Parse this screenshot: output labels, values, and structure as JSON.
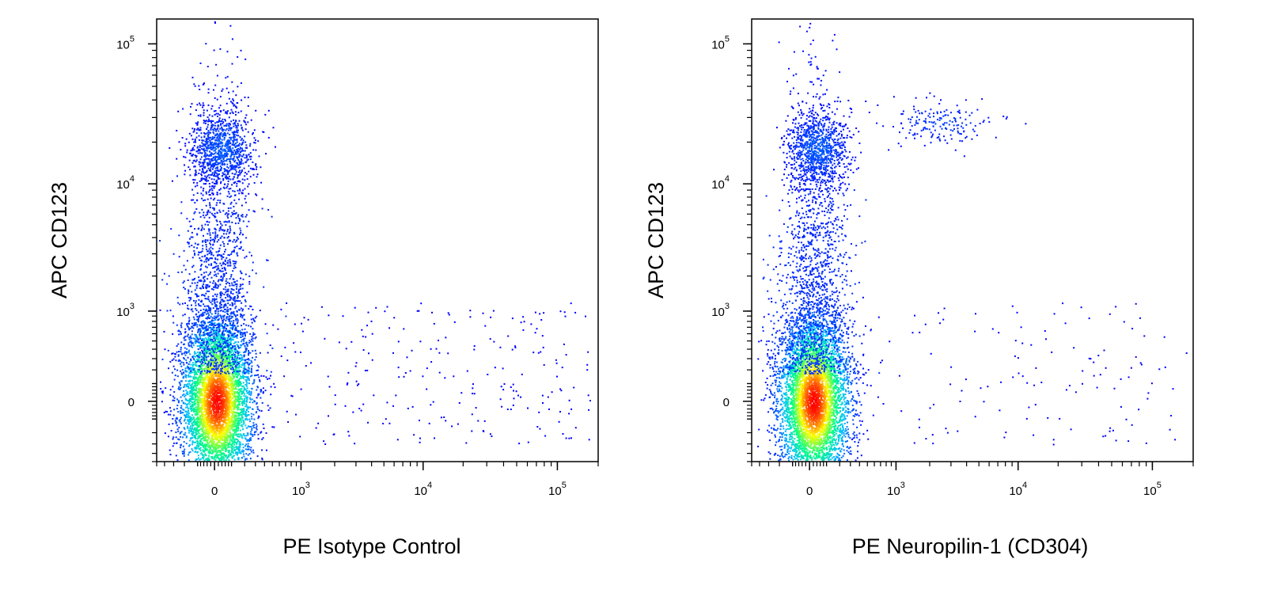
{
  "chart_data": [
    {
      "type": "scatter",
      "subtype": "flow-cytometry density dot plot (biexponential axes)",
      "xlabel": "PE Isotype Control",
      "ylabel": "APC  CD123",
      "x_ticks": [
        {
          "value": 0,
          "base": "0",
          "exp": ""
        },
        {
          "value": 1000,
          "base": "10",
          "exp": "3"
        },
        {
          "value": 10000,
          "base": "10",
          "exp": "4"
        },
        {
          "value": 100000,
          "base": "10",
          "exp": "5"
        }
      ],
      "y_ticks": [
        {
          "value": 0,
          "base": "0",
          "exp": ""
        },
        {
          "value": 1000,
          "base": "10",
          "exp": "3"
        },
        {
          "value": 10000,
          "base": "10",
          "exp": "4"
        },
        {
          "value": 100000,
          "base": "10",
          "exp": "5"
        }
      ],
      "xlim": [
        -500,
        200000
      ],
      "ylim": [
        -500,
        150000
      ],
      "color_scale": [
        "#0000ff",
        "#00c0ff",
        "#00ff80",
        "#ffff00",
        "#ff0000"
      ],
      "populations": [
        {
          "name": "main cluster",
          "x_center": 0,
          "y_center": 0,
          "density": "high"
        },
        {
          "name": "CD123 high",
          "x_center": 0,
          "y_center": 18000,
          "density": "low"
        },
        {
          "name": "scattered events",
          "x_range": [
            300,
            150000
          ],
          "y_range": [
            -200,
            1000
          ],
          "density": "sparse"
        }
      ]
    },
    {
      "type": "scatter",
      "subtype": "flow-cytometry density dot plot (biexponential axes)",
      "xlabel": "PE Neuropilin-1 (CD304)",
      "ylabel": "APC  CD123",
      "x_ticks": [
        {
          "value": 0,
          "base": "0",
          "exp": ""
        },
        {
          "value": 1000,
          "base": "10",
          "exp": "3"
        },
        {
          "value": 10000,
          "base": "10",
          "exp": "4"
        },
        {
          "value": 100000,
          "base": "10",
          "exp": "5"
        }
      ],
      "y_ticks": [
        {
          "value": 0,
          "base": "0",
          "exp": ""
        },
        {
          "value": 1000,
          "base": "10",
          "exp": "3"
        },
        {
          "value": 10000,
          "base": "10",
          "exp": "4"
        },
        {
          "value": 100000,
          "base": "10",
          "exp": "5"
        }
      ],
      "xlim": [
        -500,
        200000
      ],
      "ylim": [
        -500,
        150000
      ],
      "color_scale": [
        "#0000ff",
        "#00c0ff",
        "#00ff80",
        "#ffff00",
        "#ff0000"
      ],
      "populations": [
        {
          "name": "main cluster",
          "x_center": 0,
          "y_center": 0,
          "density": "high"
        },
        {
          "name": "CD123 high",
          "x_center": 0,
          "y_center": 18000,
          "density": "low"
        },
        {
          "name": "CD304+ CD123 high",
          "x_center": 2500,
          "y_center": 28000,
          "density": "low"
        },
        {
          "name": "scattered events",
          "x_range": [
            300,
            150000
          ],
          "y_range": [
            -200,
            1000
          ],
          "density": "sparse"
        }
      ]
    }
  ]
}
